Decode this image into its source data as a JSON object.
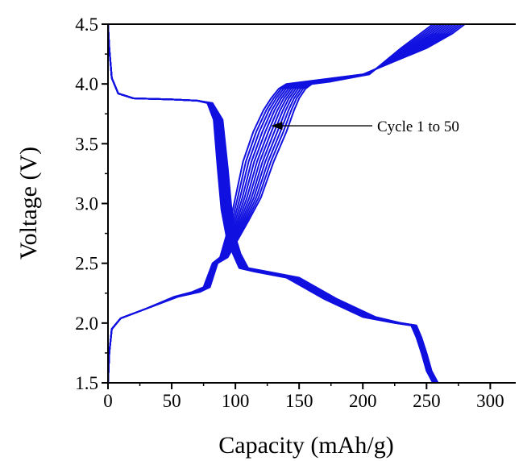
{
  "chart_data": {
    "type": "line",
    "xlabel": "Capacity (mAh/g)",
    "ylabel": "Voltage (V)",
    "xlim": [
      0,
      320
    ],
    "ylim": [
      1.5,
      4.5
    ],
    "xticks": [
      0,
      50,
      100,
      150,
      200,
      250,
      300
    ],
    "yticks": [
      1.5,
      2.0,
      2.5,
      3.0,
      3.5,
      4.0,
      4.5
    ],
    "xtick_labels": [
      "0",
      "50",
      "100",
      "150",
      "200",
      "250",
      "300"
    ],
    "ytick_labels": [
      "1.5",
      "2.0",
      "2.5",
      "3.0",
      "3.5",
      "4.0",
      "4.5"
    ],
    "grid": false,
    "line_color": "#1010e0",
    "annotation": {
      "text": "Cycle 1 to 50",
      "arrow_to": [
        128,
        3.65
      ]
    },
    "series_count": 12,
    "discharge": {
      "x_first": [
        0,
        1,
        3,
        8,
        20,
        50,
        70,
        78,
        83,
        86,
        89,
        93,
        98,
        103,
        115,
        140,
        170,
        200,
        225,
        238,
        242,
        246,
        250,
        255
      ],
      "x_last": [
        0,
        1,
        3,
        8,
        20,
        50,
        70,
        82,
        90,
        94,
        97,
        100,
        104,
        110,
        125,
        150,
        180,
        210,
        230,
        242,
        246,
        250,
        254,
        259
      ],
      "y": [
        4.5,
        4.3,
        4.05,
        3.92,
        3.88,
        3.87,
        3.86,
        3.84,
        3.7,
        3.3,
        2.95,
        2.72,
        2.58,
        2.46,
        2.43,
        2.38,
        2.2,
        2.05,
        2.0,
        1.98,
        1.88,
        1.75,
        1.6,
        1.5
      ]
    },
    "charge": {
      "x_first": [
        0,
        1,
        3,
        10,
        30,
        52,
        66,
        75,
        82,
        88,
        92,
        96,
        100,
        106,
        114,
        122,
        128,
        134,
        140,
        155,
        200,
        250,
        270,
        280
      ],
      "x_last": [
        0,
        1,
        3,
        10,
        30,
        55,
        72,
        80,
        86,
        94,
        102,
        110,
        120,
        130,
        140,
        146,
        150,
        155,
        160,
        175,
        205,
        230,
        245,
        255
      ],
      "y": [
        1.5,
        1.75,
        1.95,
        2.04,
        2.12,
        2.22,
        2.26,
        2.3,
        2.5,
        2.55,
        2.7,
        2.85,
        3.05,
        3.35,
        3.6,
        3.78,
        3.88,
        3.96,
        4.0,
        4.02,
        4.08,
        4.3,
        4.42,
        4.5
      ]
    }
  }
}
